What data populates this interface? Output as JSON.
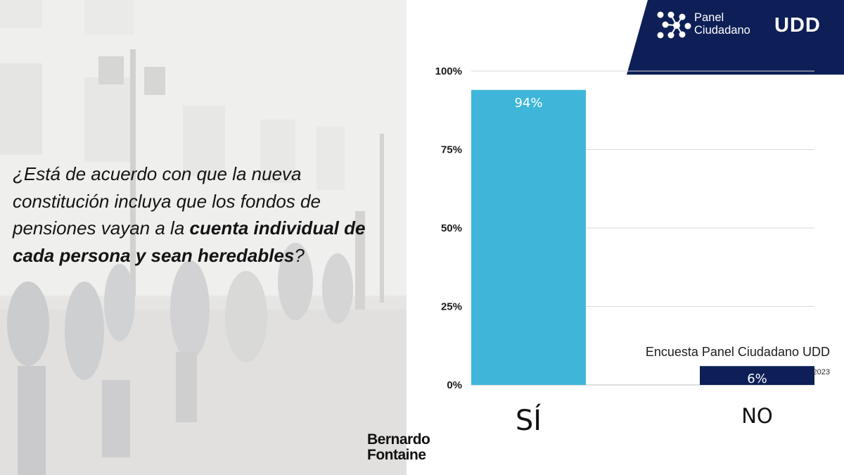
{
  "question": {
    "part1": "¿Está de acuerdo con que la nueva constitución incluya que los fondos de pensiones vayan a la ",
    "bold": "cuenta individual de cada persona y sean heredables",
    "part2": "?"
  },
  "source": "Encuesta Panel Ciudadano UDD",
  "date": "08 de julio 2023",
  "signature": {
    "line1": "Bernardo",
    "line2": "Fontaine"
  },
  "logo": {
    "line1": "Panel",
    "line2": "Ciudadano",
    "udd": "UDD",
    "icon": "network-dots-icon"
  },
  "colors": {
    "navy": "#0d1f56",
    "bar_si": "#3fb6d9",
    "bar_no": "#0d1f56",
    "grid": "#d9d9d9"
  },
  "chart_data": {
    "type": "bar",
    "categories": [
      "SÍ",
      "NO"
    ],
    "values": [
      94,
      6
    ],
    "value_labels": [
      "94%",
      "6%"
    ],
    "bar_colors": [
      "#3fb6d9",
      "#0d1f56"
    ],
    "ylim": [
      0,
      100
    ],
    "yticks": [
      0,
      25,
      50,
      75,
      100
    ],
    "ytick_labels": [
      "0%",
      "25%",
      "50%",
      "75%",
      "100%"
    ],
    "grid": true,
    "title": "",
    "xlabel": "",
    "ylabel": ""
  }
}
